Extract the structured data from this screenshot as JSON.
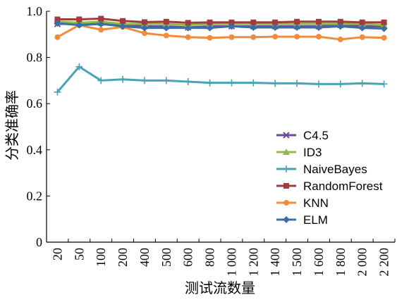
{
  "chart_data": {
    "type": "line",
    "title": "",
    "xlabel": "测试流数量",
    "ylabel": "分类准确率",
    "ylim": [
      0,
      1.0
    ],
    "yticks": [
      "0",
      "0.2",
      "0.4",
      "0.6",
      "0.8",
      "1.0"
    ],
    "x": [
      "20",
      "50",
      "100",
      "200",
      "400",
      "500",
      "600",
      "800",
      "1 000",
      "1 200",
      "1 400",
      "1 500",
      "1 600",
      "1 800",
      "2 000",
      "2 200"
    ],
    "legend_position": "center-right",
    "grid": false,
    "series": [
      {
        "name": "C4.5",
        "color": "#6b4c9a",
        "marker": "x",
        "values": [
          0.945,
          0.945,
          0.95,
          0.94,
          0.935,
          0.935,
          0.93,
          0.935,
          0.935,
          0.935,
          0.935,
          0.935,
          0.935,
          0.94,
          0.935,
          0.935
        ]
      },
      {
        "name": "ID3",
        "color": "#8fbc45",
        "marker": "triangle",
        "values": [
          0.955,
          0.95,
          0.955,
          0.945,
          0.945,
          0.945,
          0.94,
          0.945,
          0.945,
          0.945,
          0.945,
          0.945,
          0.945,
          0.945,
          0.945,
          0.94
        ]
      },
      {
        "name": "NaiveBayes",
        "color": "#4aa3b5",
        "marker": "plus",
        "values": [
          0.65,
          0.76,
          0.7,
          0.705,
          0.7,
          0.7,
          0.695,
          0.69,
          0.69,
          0.69,
          0.688,
          0.688,
          0.685,
          0.685,
          0.688,
          0.685
        ]
      },
      {
        "name": "RandomForest",
        "color": "#a23b3b",
        "marker": "square",
        "values": [
          0.965,
          0.965,
          0.968,
          0.958,
          0.953,
          0.955,
          0.95,
          0.952,
          0.952,
          0.952,
          0.952,
          0.955,
          0.955,
          0.955,
          0.952,
          0.952
        ]
      },
      {
        "name": "KNN",
        "color": "#f08c3c",
        "marker": "circle",
        "values": [
          0.888,
          0.94,
          0.92,
          0.932,
          0.905,
          0.895,
          0.888,
          0.885,
          0.888,
          0.888,
          0.89,
          0.89,
          0.89,
          0.878,
          0.888,
          0.885
        ]
      },
      {
        "name": "ELM",
        "color": "#3a6ea5",
        "marker": "diamond",
        "values": [
          0.948,
          0.94,
          0.945,
          0.935,
          0.928,
          0.928,
          0.928,
          0.928,
          0.935,
          0.93,
          0.93,
          0.93,
          0.93,
          0.935,
          0.928,
          0.925
        ]
      }
    ]
  }
}
